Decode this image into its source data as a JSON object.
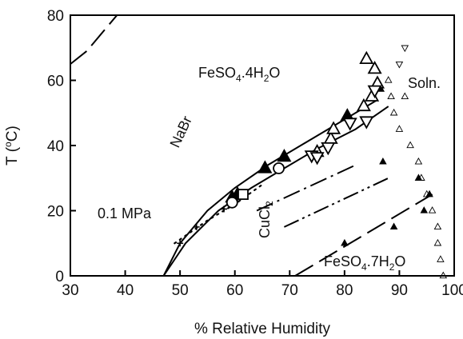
{
  "chart_data": {
    "type": "scatter",
    "title": "",
    "xlabel": "% Relative Humidity",
    "ylabel_parts": {
      "base": "T (",
      "sup": "o",
      "tail": "C)"
    },
    "xlim": [
      30,
      100
    ],
    "ylim": [
      0,
      80
    ],
    "x_ticks": [
      "30",
      "40",
      "50",
      "60",
      "70",
      "80",
      "90",
      "100"
    ],
    "y_ticks": [
      "0",
      "20",
      "40",
      "60",
      "80"
    ],
    "grid": false,
    "annotations": {
      "pressure": "0.1 MPa",
      "solution": "Soln.",
      "nabr": "NaBr",
      "cucl2": {
        "base": "CuCl",
        "sub": "2"
      },
      "tetrahydrate": {
        "a": "FeSO",
        "b": "4",
        "c": ".4H",
        "d": "2",
        "e": "O"
      },
      "heptahydrate": {
        "a": "FeSO",
        "b": "4",
        "c": ".7H",
        "d": "2",
        "e": "O"
      }
    },
    "series": [
      {
        "marker": "filled-triangle-large",
        "points": [
          [
            59.5,
            24
          ],
          [
            60.5,
            25
          ],
          [
            65.5,
            33
          ],
          [
            69,
            36.5
          ],
          [
            80.5,
            49
          ],
          [
            86,
            58
          ]
        ]
      },
      {
        "marker": "open-triangle-large",
        "points": [
          [
            75,
            38
          ],
          [
            77.5,
            42
          ],
          [
            78,
            45
          ],
          [
            83.5,
            52
          ],
          [
            84,
            66.5
          ],
          [
            85.5,
            63.5
          ],
          [
            85,
            55
          ],
          [
            86,
            59
          ]
        ]
      },
      {
        "marker": "open-inverted-triangle-large",
        "points": [
          [
            74,
            37
          ],
          [
            75,
            36.5
          ],
          [
            77,
            39.5
          ],
          [
            81,
            47
          ],
          [
            84,
            47.5
          ],
          [
            85.5,
            57
          ]
        ]
      },
      {
        "marker": "open-circle",
        "points": [
          [
            59.5,
            22.5
          ],
          [
            68,
            33
          ]
        ]
      },
      {
        "marker": "open-square",
        "points": [
          [
            61.5,
            25
          ]
        ]
      },
      {
        "marker": "plus",
        "points": [
          [
            50,
            10
          ],
          [
            53,
            15
          ],
          [
            58,
            20.5
          ]
        ]
      },
      {
        "marker": "open-triangle-small",
        "points": [
          [
            88,
            60
          ],
          [
            89,
            50
          ],
          [
            90,
            45
          ],
          [
            92,
            40
          ],
          [
            93.5,
            35
          ],
          [
            94,
            30
          ],
          [
            95,
            25
          ],
          [
            96,
            20
          ],
          [
            97,
            15
          ],
          [
            97,
            10
          ],
          [
            97.5,
            5
          ],
          [
            98,
            0
          ],
          [
            88.5,
            55
          ],
          [
            91,
            55
          ]
        ]
      },
      {
        "marker": "open-inverted-triangle-small",
        "points": [
          [
            90,
            65
          ],
          [
            91,
            70
          ]
        ]
      },
      {
        "marker": "filled-triangle-small",
        "points": [
          [
            87,
            35
          ],
          [
            93.5,
            30
          ],
          [
            95.5,
            25
          ],
          [
            94.5,
            20
          ],
          [
            89,
            15
          ],
          [
            80,
            10
          ]
        ]
      }
    ],
    "lines": [
      {
        "style": "solid",
        "points": [
          [
            47,
            0
          ],
          [
            50,
            10
          ],
          [
            55,
            20
          ],
          [
            60,
            27
          ],
          [
            66,
            34
          ],
          [
            72,
            40
          ],
          [
            78,
            46
          ],
          [
            86,
            54
          ]
        ]
      },
      {
        "style": "solid",
        "points": [
          [
            47,
            0
          ],
          [
            51,
            10
          ],
          [
            57,
            20
          ],
          [
            63,
            27
          ],
          [
            69,
            33
          ],
          [
            75,
            39
          ],
          [
            82,
            45
          ],
          [
            88,
            52
          ]
        ]
      },
      {
        "style": "dotted",
        "points": [
          [
            49,
            10
          ],
          [
            55,
            17
          ],
          [
            60,
            22
          ],
          [
            65,
            28
          ]
        ]
      },
      {
        "style": "long-dash",
        "points": [
          [
            30,
            65
          ],
          [
            33,
            69
          ],
          [
            36,
            75
          ],
          [
            38.5,
            80
          ]
        ]
      },
      {
        "style": "dash-dot",
        "points": [
          [
            64,
            20
          ],
          [
            82,
            34
          ]
        ]
      },
      {
        "style": "dash-dot-dot",
        "points": [
          [
            69,
            15
          ],
          [
            88,
            30
          ]
        ]
      },
      {
        "style": "long-dash",
        "points": [
          [
            71,
            0
          ],
          [
            96,
            25
          ]
        ]
      }
    ]
  }
}
